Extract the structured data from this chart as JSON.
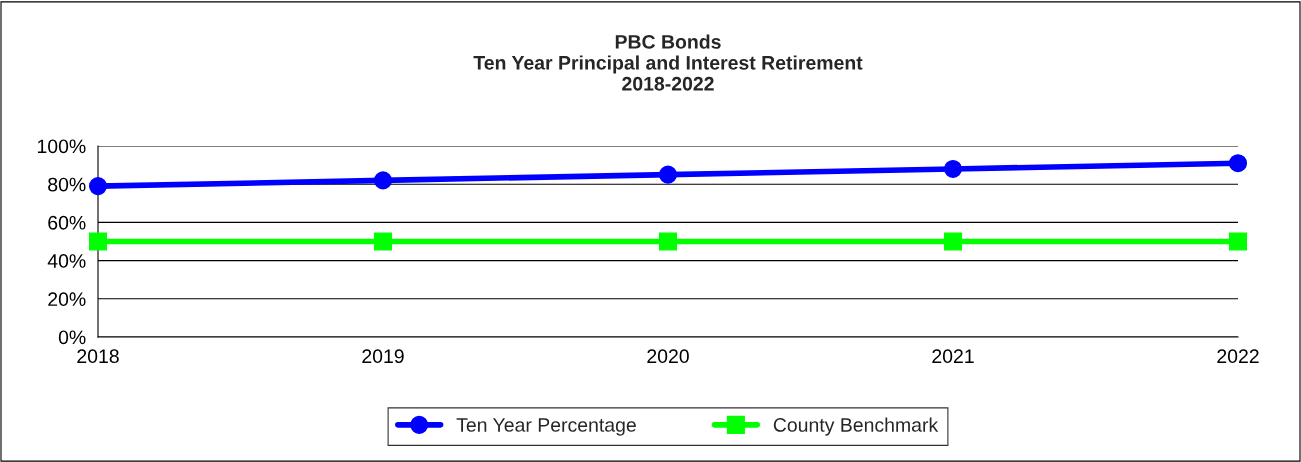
{
  "chart_data": {
    "type": "line",
    "title": "PBC Bonds\nTen Year Principal and Interest Retirement\n2018-2022",
    "categories": [
      "2018",
      "2019",
      "2020",
      "2021",
      "2022"
    ],
    "series": [
      {
        "name": "Ten Year Percentage",
        "color": "#0000ff",
        "marker": "circle",
        "values": [
          79,
          82,
          85,
          88,
          91
        ]
      },
      {
        "name": "County Benchmark",
        "color": "#00ff00",
        "marker": "square",
        "values": [
          50,
          50,
          50,
          50,
          50
        ]
      }
    ],
    "ylim": [
      0,
      100
    ],
    "yticks": [
      {
        "value": 0,
        "label": "0%"
      },
      {
        "value": 20,
        "label": "20%"
      },
      {
        "value": 40,
        "label": "40%"
      },
      {
        "value": 60,
        "label": "60%"
      },
      {
        "value": 80,
        "label": "80%"
      },
      {
        "value": 100,
        "label": "100%"
      }
    ],
    "grid": "y",
    "legend": "bottom",
    "line_style": "solid"
  }
}
